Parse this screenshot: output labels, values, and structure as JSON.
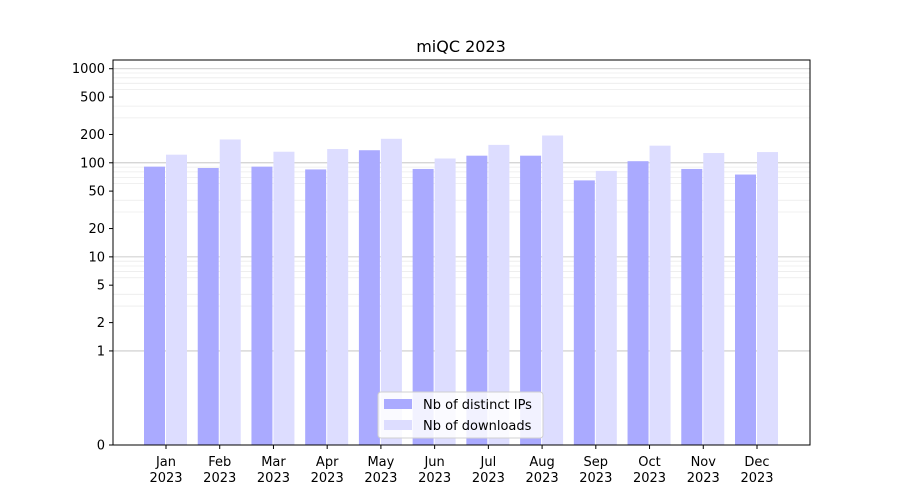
{
  "chart_data": {
    "type": "bar",
    "title": "miQC 2023",
    "xlabel": "",
    "ylabel": "",
    "y_scale": "symlog",
    "ylim": [
      0,
      1300
    ],
    "y_ticks": [
      0,
      1,
      2,
      5,
      10,
      20,
      50,
      100,
      200,
      500,
      1000
    ],
    "y_tick_labels": [
      "0",
      "1",
      "2",
      "5",
      "10",
      "20",
      "50",
      "100",
      "200",
      "500",
      "1000"
    ],
    "grid": true,
    "legend_position": "bottom-center",
    "categories": [
      {
        "month": "Jan",
        "year": "2023"
      },
      {
        "month": "Feb",
        "year": "2023"
      },
      {
        "month": "Mar",
        "year": "2023"
      },
      {
        "month": "Apr",
        "year": "2023"
      },
      {
        "month": "May",
        "year": "2023"
      },
      {
        "month": "Jun",
        "year": "2023"
      },
      {
        "month": "Jul",
        "year": "2023"
      },
      {
        "month": "Aug",
        "year": "2023"
      },
      {
        "month": "Sep",
        "year": "2023"
      },
      {
        "month": "Oct",
        "year": "2023"
      },
      {
        "month": "Nov",
        "year": "2023"
      },
      {
        "month": "Dec",
        "year": "2023"
      }
    ],
    "series": [
      {
        "name": "Nb of distinct IPs",
        "color": "#aaaaff",
        "values": [
          91,
          88,
          91,
          85,
          136,
          86,
          119,
          119,
          65,
          104,
          86,
          75
        ]
      },
      {
        "name": "Nb of downloads",
        "color": "#ddddff",
        "values": [
          122,
          177,
          131,
          140,
          180,
          111,
          155,
          195,
          82,
          152,
          127,
          130
        ]
      }
    ]
  }
}
